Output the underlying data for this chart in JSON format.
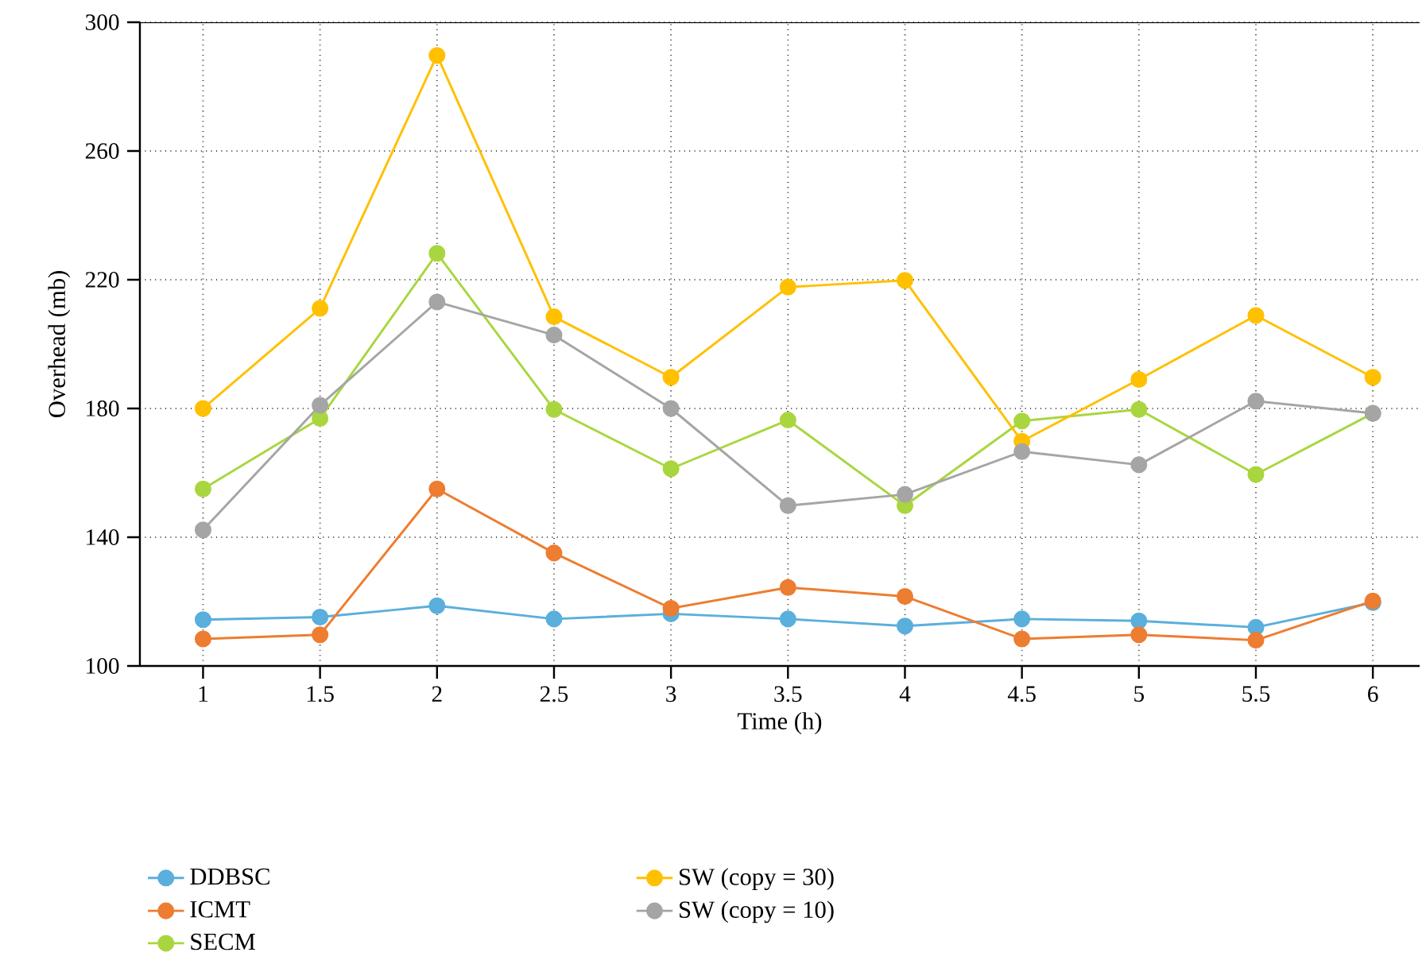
{
  "chart_data": {
    "type": "line",
    "xlabel": "Time (h)",
    "ylabel": "Overhead (mb)",
    "x": [
      1,
      1.5,
      2,
      2.5,
      3,
      3.5,
      4,
      4.5,
      5,
      5.5,
      6
    ],
    "series": [
      {
        "name": "DDBSC",
        "color": "#5aafdc",
        "values": [
          114.4,
          115.2,
          118.7,
          114.6,
          116.2,
          114.6,
          112.4,
          114.6,
          114.0,
          112.0,
          119.7
        ]
      },
      {
        "name": "ICMT",
        "color": "#ed7d31",
        "values": [
          108.4,
          109.7,
          155.0,
          135.1,
          117.9,
          124.4,
          121.6,
          108.4,
          109.7,
          108.0,
          120.2
        ]
      },
      {
        "name": "SECM",
        "color": "#a9d63f",
        "values": [
          155.0,
          176.9,
          228.2,
          179.7,
          161.3,
          176.4,
          149.8,
          176.1,
          179.7,
          159.5,
          178.5
        ]
      },
      {
        "name": "SW (copy = 30)",
        "color": "#ffc000",
        "values": [
          180.0,
          211.1,
          289.7,
          208.5,
          189.7,
          217.7,
          219.8,
          169.8,
          189.0,
          208.9,
          189.7
        ]
      },
      {
        "name": "SW (copy = 10)",
        "color": "#a5a5a5",
        "values": [
          142.3,
          181.0,
          213.1,
          202.8,
          180.0,
          149.8,
          153.3,
          166.6,
          162.5,
          182.3,
          178.5
        ]
      }
    ],
    "xlim": [
      0.73,
      6.2
    ],
    "ylim": [
      100,
      300
    ],
    "xticks": [
      1,
      1.5,
      2,
      2.5,
      3,
      3.5,
      4,
      4.5,
      5,
      5.5,
      6
    ],
    "yticks": [
      100,
      140,
      180,
      220,
      260,
      300
    ],
    "grid": true,
    "legend": "bottom",
    "marker": "circle",
    "line_style": "solid"
  }
}
